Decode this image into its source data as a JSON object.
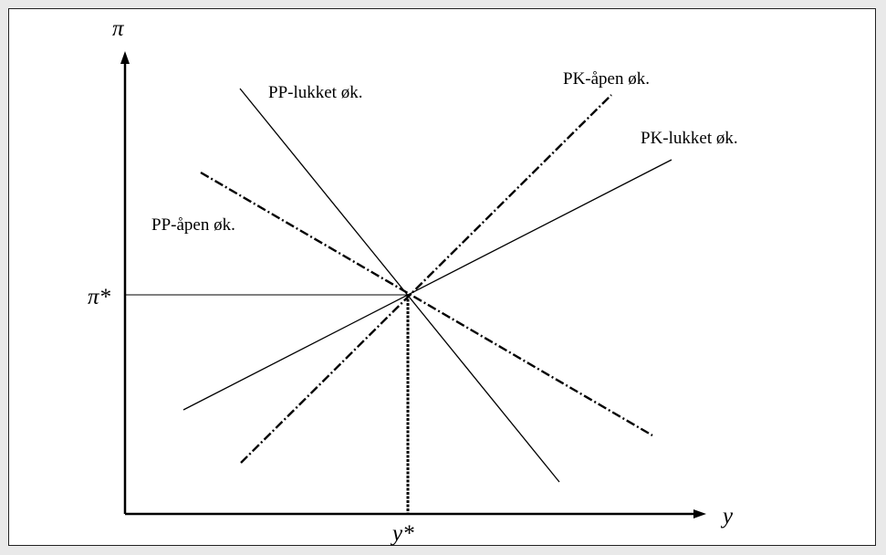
{
  "diagram": {
    "y_axis_label": "π",
    "x_axis_label": "y",
    "equilibrium_pi_label": "π*",
    "equilibrium_y_label": "y*",
    "curves": {
      "pp_closed": "PP-lukket øk.",
      "pp_open": "PP-åpen øk.",
      "pk_open": "PK-åpen øk.",
      "pk_closed": "PK-lukket øk."
    }
  }
}
